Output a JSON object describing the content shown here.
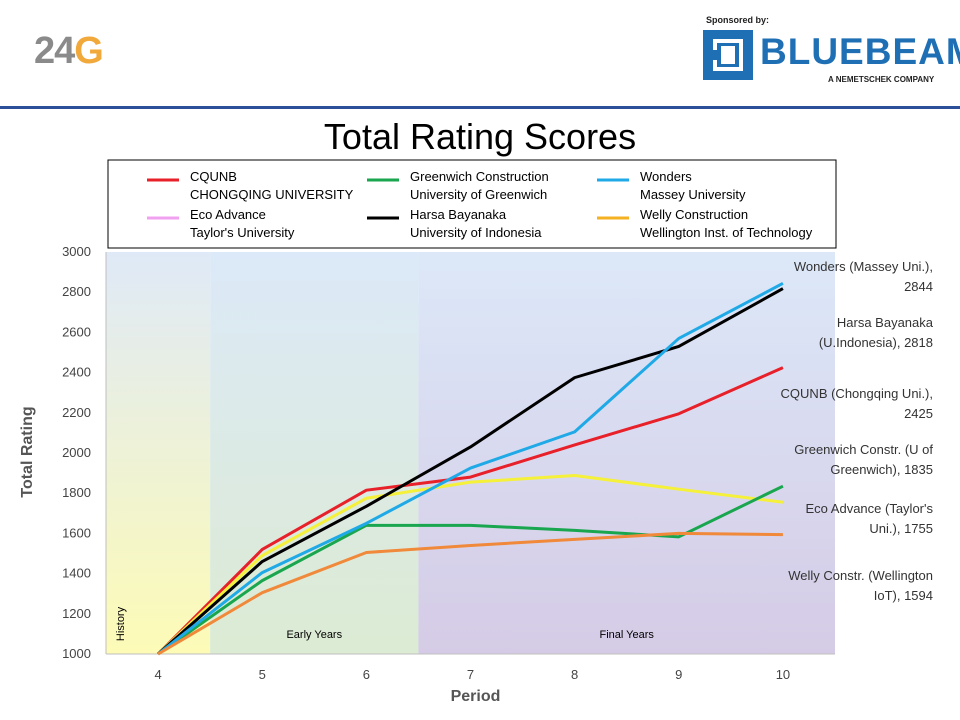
{
  "header": {
    "logo_main": "24",
    "logo_accent": "G",
    "sponsor_label": "Sponsored by:",
    "sponsor_name": "BLUEBEAM",
    "sponsor_registered": "®",
    "sponsor_tagline": "A NEMETSCHEK COMPANY",
    "brand_color": "#1f6fb5",
    "rule_color": "#2b4f98"
  },
  "chart_data": {
    "type": "line",
    "title": "Total Rating Scores",
    "xlabel": "Period",
    "ylabel": "Total Rating",
    "x": [
      4,
      5,
      6,
      7,
      8,
      9,
      10
    ],
    "xlim": [
      3.5,
      10.5
    ],
    "ylim": [
      1000,
      3000
    ],
    "yticks": [
      1000,
      1200,
      1400,
      1600,
      1800,
      2000,
      2200,
      2400,
      2600,
      2800,
      3000
    ],
    "legend_position": "top",
    "bands": [
      {
        "label": "History",
        "from": 3.5,
        "to": 4.5,
        "color": "#fdfbb6",
        "label_orientation": "vertical"
      },
      {
        "label": "Early Years",
        "from": 4.5,
        "to": 6.5,
        "color": "#dcebd3",
        "label_orientation": "horizontal"
      },
      {
        "label": "Final Years",
        "from": 6.5,
        "to": 10.5,
        "color": "#d5cbe6",
        "label_orientation": "horizontal"
      }
    ],
    "series": [
      {
        "name": "CQUNB",
        "name2": "CHONGQING UNIVERSITY",
        "color": "#e8202a",
        "values": [
          1000,
          1520,
          1815,
          1880,
          2040,
          2195,
          2425
        ]
      },
      {
        "name": "Eco Advance",
        "name2": "Taylor's University",
        "color": "#f0a2f0",
        "line_color": "#f5f03a",
        "values": [
          1000,
          1490,
          1775,
          1855,
          1888,
          1820,
          1755
        ]
      },
      {
        "name": "Greenwich Construction",
        "name2": "University of Greenwich",
        "color": "#19a64f",
        "values": [
          1000,
          1365,
          1640,
          1640,
          1615,
          1583,
          1835
        ]
      },
      {
        "name": "Harsa Bayanaka",
        "name2": "University of Indonesia",
        "color": "#000000",
        "values": [
          1000,
          1460,
          1735,
          2030,
          2375,
          2530,
          2818
        ]
      },
      {
        "name": "Wonders",
        "name2": "Massey University",
        "color": "#1fa9e6",
        "values": [
          1000,
          1405,
          1650,
          1925,
          2105,
          2570,
          2844
        ]
      },
      {
        "name": "Welly Construction",
        "name2": "Wellington Inst. of Technology",
        "color": "#f4b223",
        "line_color": "#f0893a",
        "values": [
          1000,
          1305,
          1505,
          1540,
          1570,
          1600,
          1594
        ]
      }
    ],
    "annotations": [
      {
        "line1": "Wonders (Massey Uni.),",
        "line2": "2844"
      },
      {
        "line1": "Harsa Bayanaka",
        "line2": "(U.Indonesia), 2818"
      },
      {
        "line1": "CQUNB (Chongqing Uni.),",
        "line2": "2425"
      },
      {
        "line1": "Greenwich Constr. (U of",
        "line2": "Greenwich), 1835"
      },
      {
        "line1": "Eco Advance (Taylor's",
        "line2": "Uni.), 1755"
      },
      {
        "line1": "Welly Constr. (Wellington",
        "line2": "IoT), 1594"
      }
    ]
  }
}
